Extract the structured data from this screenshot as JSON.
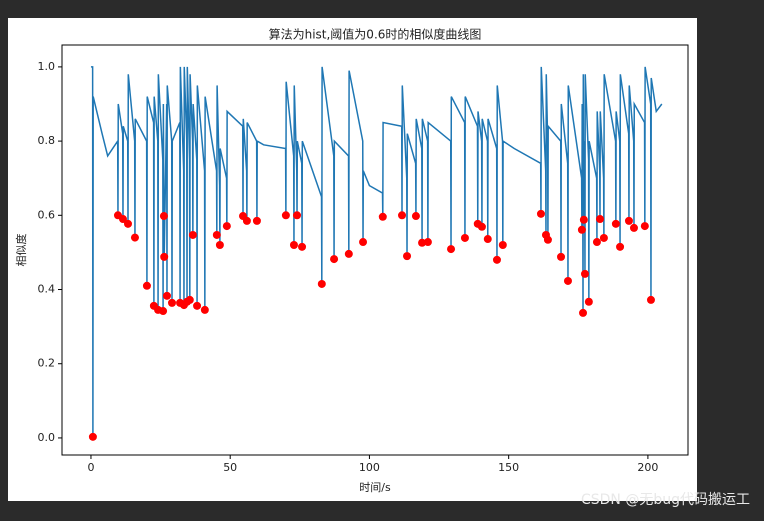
{
  "chart_data": {
    "type": "line",
    "title": "算法为hist,阈值为0.6时的相似度曲线图",
    "x_label": "时间/s",
    "y_label": "相似度",
    "xlim": [
      -10.4,
      214.4
    ],
    "ylim": [
      -0.046,
      1.059
    ],
    "xticks": [
      0,
      50,
      100,
      150,
      200
    ],
    "yticks": [
      {
        "value": 0,
        "label": "0.0"
      },
      0.2,
      0.4,
      0.6,
      0.8,
      {
        "value": 1,
        "label": "1.0"
      }
    ],
    "grid": false,
    "series": [
      {
        "type": "line",
        "color": "#1f77b4",
        "x": [
          0,
          0.6,
          0.7,
          0.8,
          4,
          6,
          9.6,
          9.7,
          9.8,
          11.4,
          11.5,
          11.6,
          13.2,
          13.3,
          13.4,
          15.7,
          15.8,
          15.9,
          20.0,
          20.1,
          20.2,
          22.5,
          22.6,
          22.7,
          24.0,
          24.1,
          24.2,
          25.8,
          25.9,
          26.0,
          26.2,
          26.3,
          27.2,
          27.3,
          27.4,
          29.0,
          29.1,
          29.2,
          31.9,
          32.0,
          32.1,
          33.3,
          33.4,
          33.5,
          34.4,
          34.5,
          34.6,
          35.4,
          35.5,
          35.6,
          36.5,
          36.6,
          36.7,
          38.0,
          38.1,
          38.2,
          40.8,
          40.9,
          41.0,
          45.1,
          45.2,
          45.3,
          46.2,
          46.3,
          46.4,
          48.7,
          48.8,
          48.9,
          54.5,
          54.6,
          54.7,
          55.9,
          56.0,
          56.1,
          59.5,
          59.6,
          59.7,
          62,
          69.9,
          70.0,
          70.1,
          72.8,
          72.9,
          73.0,
          73.9,
          74.0,
          74.1,
          75.7,
          75.8,
          75.9,
          82.8,
          82.9,
          83.0,
          87.2,
          87.3,
          87.4,
          92.5,
          92.6,
          92.7,
          97.6,
          97.7,
          97.8,
          100,
          104.7,
          104.8,
          104.9,
          111.6,
          111.7,
          111.8,
          113.4,
          113.5,
          113.6,
          116.6,
          116.7,
          116.8,
          118.8,
          118.9,
          119.0,
          120.9,
          121.0,
          121.1,
          129.2,
          129.3,
          129.4,
          134.2,
          134.3,
          134.4,
          138.8,
          138.9,
          139.0,
          140.3,
          140.4,
          140.5,
          142.4,
          142.5,
          142.6,
          145.7,
          145.8,
          145.9,
          147.8,
          147.9,
          148.0,
          152,
          161.5,
          161.6,
          161.7,
          163.3,
          163.4,
          163.5,
          164.0,
          164.1,
          164.2,
          168.7,
          168.8,
          168.9,
          171.2,
          171.3,
          171.4,
          176.2,
          176.3,
          176.4,
          176.6,
          176.7,
          176.8,
          176.9,
          177.0,
          177.1,
          177.3,
          177.4,
          177.5,
          178.7,
          178.8,
          178.9,
          181.6,
          181.7,
          181.8,
          182.7,
          182.8,
          182.9,
          184.1,
          184.2,
          184.3,
          188.4,
          188.5,
          188.6,
          189.9,
          190.0,
          190.1,
          193.1,
          193.2,
          193.3,
          194.9,
          195.0,
          195.1,
          198.8,
          198.9,
          199.0,
          201.0,
          201.1,
          201.2,
          203,
          205
        ],
        "values": [
          1.0,
          1.0,
          0.003,
          0.92,
          0.82,
          0.76,
          0.8,
          0.6,
          0.9,
          0.82,
          0.59,
          0.84,
          0.8,
          0.577,
          0.98,
          0.8,
          0.54,
          0.86,
          0.8,
          0.41,
          0.92,
          0.85,
          0.356,
          0.92,
          0.8,
          0.345,
          0.98,
          0.75,
          0.342,
          0.9,
          0.598,
          0.488,
          0.9,
          0.383,
          0.95,
          0.8,
          0.364,
          0.8,
          0.85,
          0.364,
          1.0,
          0.72,
          0.358,
          1.0,
          0.8,
          0.367,
          1.0,
          0.75,
          0.372,
          0.98,
          0.8,
          0.547,
          0.9,
          0.75,
          0.356,
          0.95,
          0.72,
          0.345,
          0.92,
          0.72,
          0.547,
          0.95,
          0.68,
          0.52,
          0.78,
          0.7,
          0.571,
          0.88,
          0.84,
          0.598,
          0.86,
          0.72,
          0.585,
          0.85,
          0.8,
          0.585,
          0.8,
          0.79,
          0.78,
          0.6,
          0.96,
          0.76,
          0.52,
          0.95,
          0.72,
          0.6,
          0.8,
          0.74,
          0.515,
          0.8,
          0.65,
          0.415,
          1.0,
          0.76,
          0.482,
          0.8,
          0.76,
          0.496,
          0.99,
          0.8,
          0.528,
          0.72,
          0.68,
          0.66,
          0.596,
          0.85,
          0.84,
          0.6,
          0.95,
          0.7,
          0.49,
          0.82,
          0.74,
          0.598,
          0.86,
          0.78,
          0.526,
          0.86,
          0.8,
          0.528,
          0.85,
          0.8,
          0.509,
          0.92,
          0.85,
          0.539,
          0.92,
          0.84,
          0.577,
          0.88,
          0.8,
          0.569,
          0.86,
          0.8,
          0.536,
          0.86,
          0.78,
          0.48,
          0.95,
          0.8,
          0.52,
          0.8,
          0.78,
          0.74,
          0.604,
          1.0,
          0.72,
          0.547,
          0.98,
          0.8,
          0.534,
          0.84,
          0.8,
          0.488,
          0.9,
          0.74,
          0.423,
          0.95,
          0.7,
          0.561,
          0.9,
          0.7,
          0.337,
          0.98,
          0.75,
          0.588,
          0.8,
          0.7,
          0.442,
          0.98,
          0.75,
          0.367,
          0.8,
          0.7,
          0.528,
          0.88,
          0.72,
          0.59,
          0.88,
          0.7,
          0.539,
          0.98,
          0.8,
          0.577,
          0.88,
          0.8,
          0.515,
          0.98,
          0.82,
          0.585,
          0.95,
          0.8,
          0.566,
          0.9,
          0.85,
          0.571,
          1.0,
          0.9,
          0.372,
          0.97,
          0.88,
          0.9
        ]
      },
      {
        "type": "scatter",
        "color": "#ff0000",
        "x": [
          0.7,
          9.7,
          11.5,
          13.3,
          15.8,
          20.1,
          22.6,
          24.1,
          25.9,
          26.2,
          26.3,
          27.3,
          29.1,
          32.0,
          33.4,
          34.5,
          35.5,
          36.6,
          38.1,
          40.9,
          45.2,
          46.3,
          48.8,
          54.6,
          56.0,
          59.6,
          70.0,
          72.9,
          74.0,
          75.8,
          82.9,
          87.3,
          92.6,
          97.7,
          104.8,
          111.7,
          113.5,
          116.7,
          118.9,
          121.0,
          129.3,
          134.3,
          138.9,
          140.4,
          142.5,
          145.8,
          147.9,
          161.6,
          163.4,
          164.1,
          168.8,
          171.3,
          176.3,
          176.7,
          177.0,
          177.4,
          178.8,
          181.7,
          182.8,
          184.2,
          188.5,
          190.0,
          193.2,
          195.0,
          198.9,
          201.1
        ],
        "values": [
          0.003,
          0.6,
          0.59,
          0.577,
          0.54,
          0.41,
          0.356,
          0.345,
          0.342,
          0.598,
          0.488,
          0.383,
          0.364,
          0.364,
          0.358,
          0.367,
          0.372,
          0.547,
          0.356,
          0.345,
          0.547,
          0.52,
          0.571,
          0.598,
          0.585,
          0.585,
          0.6,
          0.52,
          0.6,
          0.515,
          0.415,
          0.482,
          0.496,
          0.528,
          0.596,
          0.6,
          0.49,
          0.598,
          0.526,
          0.528,
          0.509,
          0.539,
          0.577,
          0.569,
          0.536,
          0.48,
          0.52,
          0.604,
          0.547,
          0.534,
          0.488,
          0.423,
          0.561,
          0.337,
          0.588,
          0.442,
          0.367,
          0.528,
          0.59,
          0.539,
          0.577,
          0.515,
          0.585,
          0.566,
          0.571,
          0.372
        ]
      }
    ]
  },
  "watermark": "CSDN @无bug代码搬运工"
}
